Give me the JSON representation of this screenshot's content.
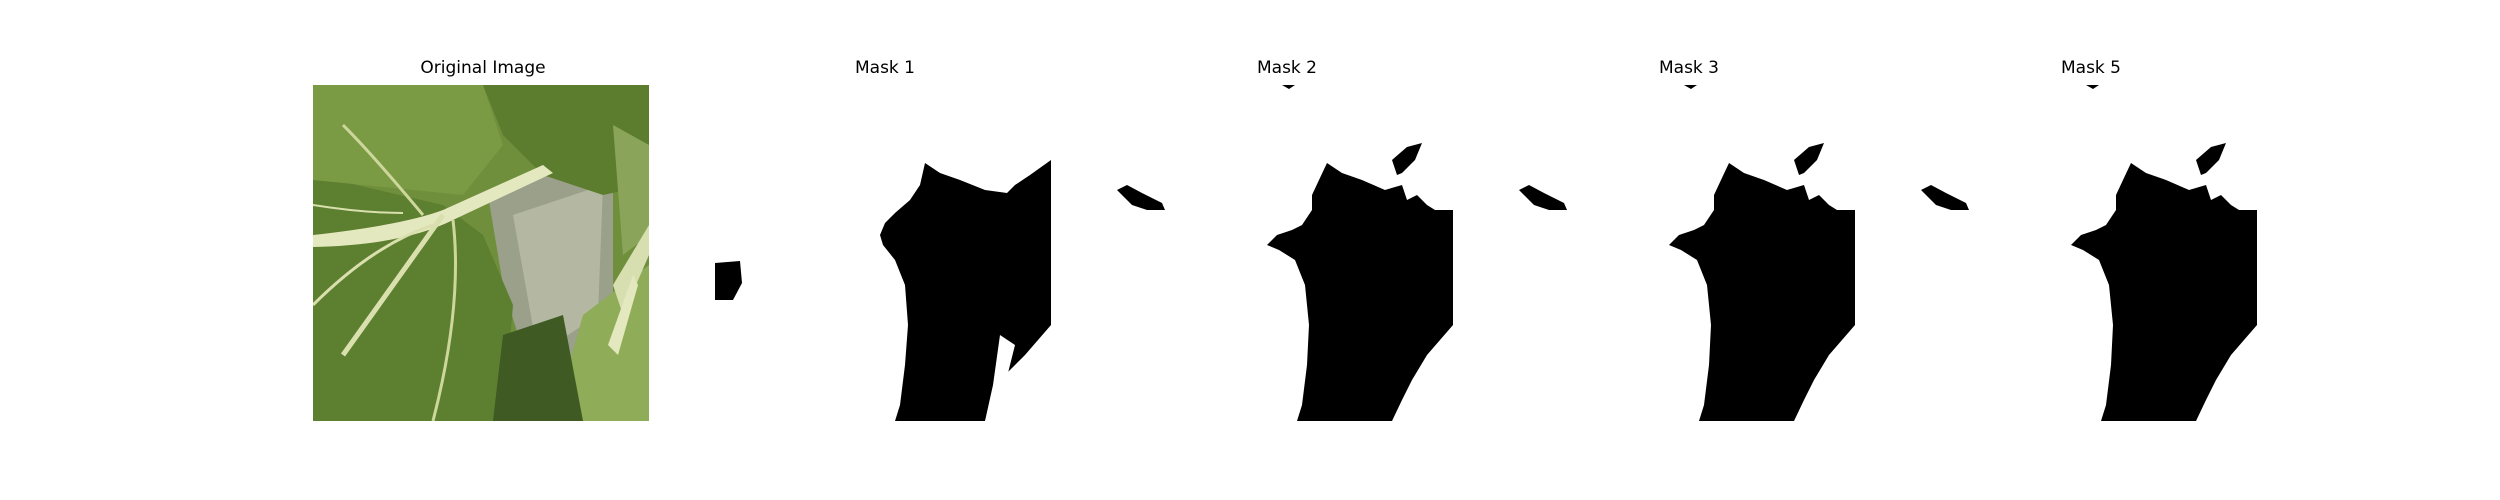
{
  "figure": {
    "panels": [
      {
        "title": "Original Image",
        "kind": "photo",
        "subject": "leaf-closeup-photo"
      },
      {
        "title": "Mask 1",
        "kind": "mask"
      },
      {
        "title": "Mask 2",
        "kind": "mask"
      },
      {
        "title": "Mask 3",
        "kind": "mask"
      },
      {
        "title": "Mask 5",
        "kind": "mask"
      }
    ]
  },
  "colors": {
    "background": "#ffffff",
    "mask_fill": "#000000",
    "leaf_dark": "#4f6f2a",
    "leaf_mid": "#6f8f3c",
    "leaf_light": "#a7bd6b",
    "vein": "#e4e8bf",
    "gray_bg": "#9aa08a"
  }
}
